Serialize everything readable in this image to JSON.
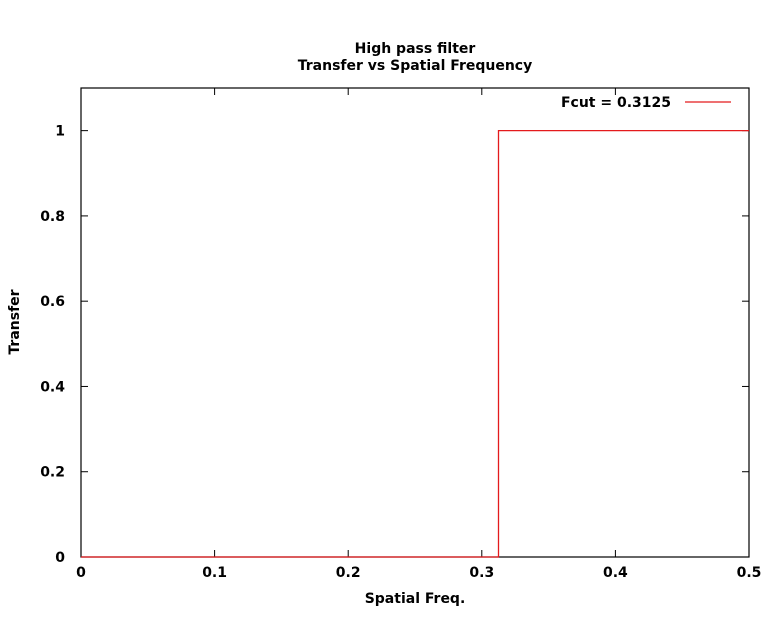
{
  "chart_data": {
    "type": "line",
    "title": "High pass filter",
    "subtitle": "Transfer vs Spatial Frequency",
    "xlabel": "Spatial Freq.",
    "ylabel": "Transfer",
    "xlim": [
      0,
      0.5
    ],
    "ylim": [
      0,
      1.1
    ],
    "xticks": [
      "0",
      "0.1",
      "0.2",
      "0.3",
      "0.4",
      "0.5"
    ],
    "xtick_values": [
      0,
      0.1,
      0.2,
      0.3,
      0.4,
      0.5
    ],
    "yticks": [
      "0",
      "0.2",
      "0.4",
      "0.6",
      "0.8",
      "1"
    ],
    "ytick_values": [
      0,
      0.2,
      0.4,
      0.6,
      0.8,
      1
    ],
    "grid": false,
    "legend": "top-right",
    "series": [
      {
        "name": "Fcut = 0.3125",
        "color": "#e41a1c",
        "x": [
          0,
          0.3125,
          0.3125,
          0.5
        ],
        "y": [
          0,
          0,
          1,
          1
        ]
      }
    ]
  }
}
